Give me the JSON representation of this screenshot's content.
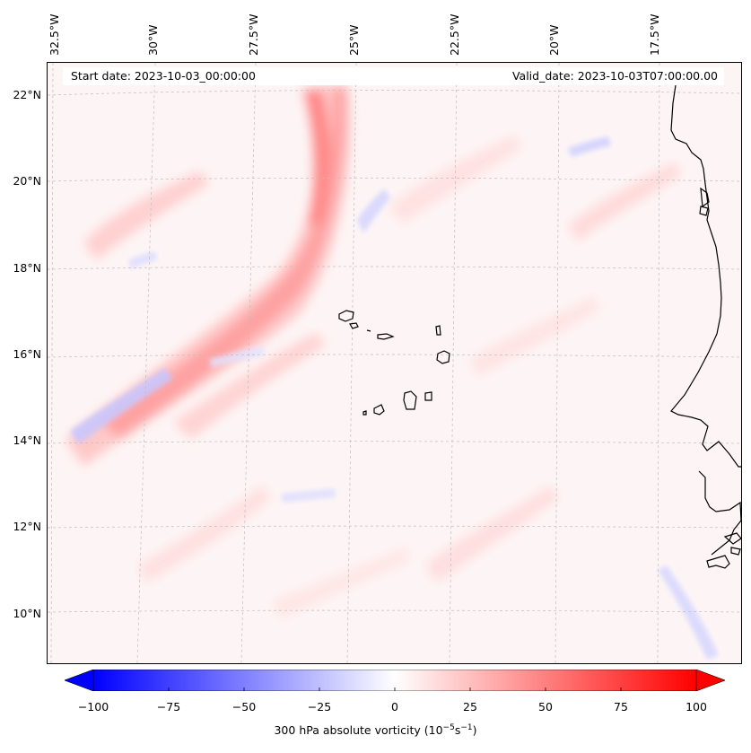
{
  "map": {
    "lon_labels": [
      "32.5°W",
      "30°W",
      "27.5°W",
      "25°W",
      "22.5°W",
      "20°W",
      "17.5°W"
    ],
    "lat_labels": [
      "22°N",
      "20°N",
      "18°N",
      "16°N",
      "14°N",
      "12°N",
      "10°N"
    ],
    "start_date": "Start date: 2023-10-03_00:00:00",
    "valid_date": "Valid_date: 2023-10-03T07:00:00.00",
    "field": "300 hPa absolute vorticity",
    "colors": {
      "positive": "#ff0000",
      "negative": "#0000ff",
      "neutral": "#ffffff",
      "coastline": "#000000"
    }
  },
  "colorbar": {
    "ticks": [
      "−100",
      "−75",
      "−50",
      "−25",
      "0",
      "25",
      "50",
      "75",
      "100"
    ],
    "label": "300 hPa absolute vorticity (10",
    "label_exp1": "−5",
    "label_mid": "s",
    "label_exp2": "−1",
    "label_end": ")"
  }
}
